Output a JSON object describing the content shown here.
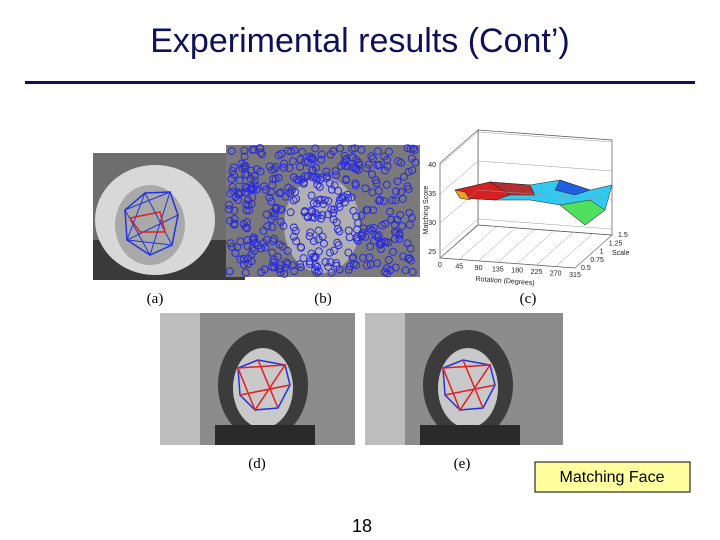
{
  "title": "Experimental results (Cont’)",
  "figures": {
    "captions": [
      "(a)",
      "(b)",
      "(c)",
      "(d)",
      "(e)"
    ]
  },
  "plot": {
    "y_label": "Matching Score",
    "x_label": "Rotation (Degrees)",
    "z_label": "Scale",
    "y_ticks": [
      "40",
      "35",
      "30",
      "25"
    ],
    "x_ticks": [
      "0",
      "45",
      "90",
      "135",
      "180",
      "225",
      "270",
      "315"
    ],
    "z_ticks": [
      "1.5",
      "1.25",
      "1",
      "0.75",
      "0.5"
    ]
  },
  "callout": "Matching Face",
  "page_number": "18"
}
